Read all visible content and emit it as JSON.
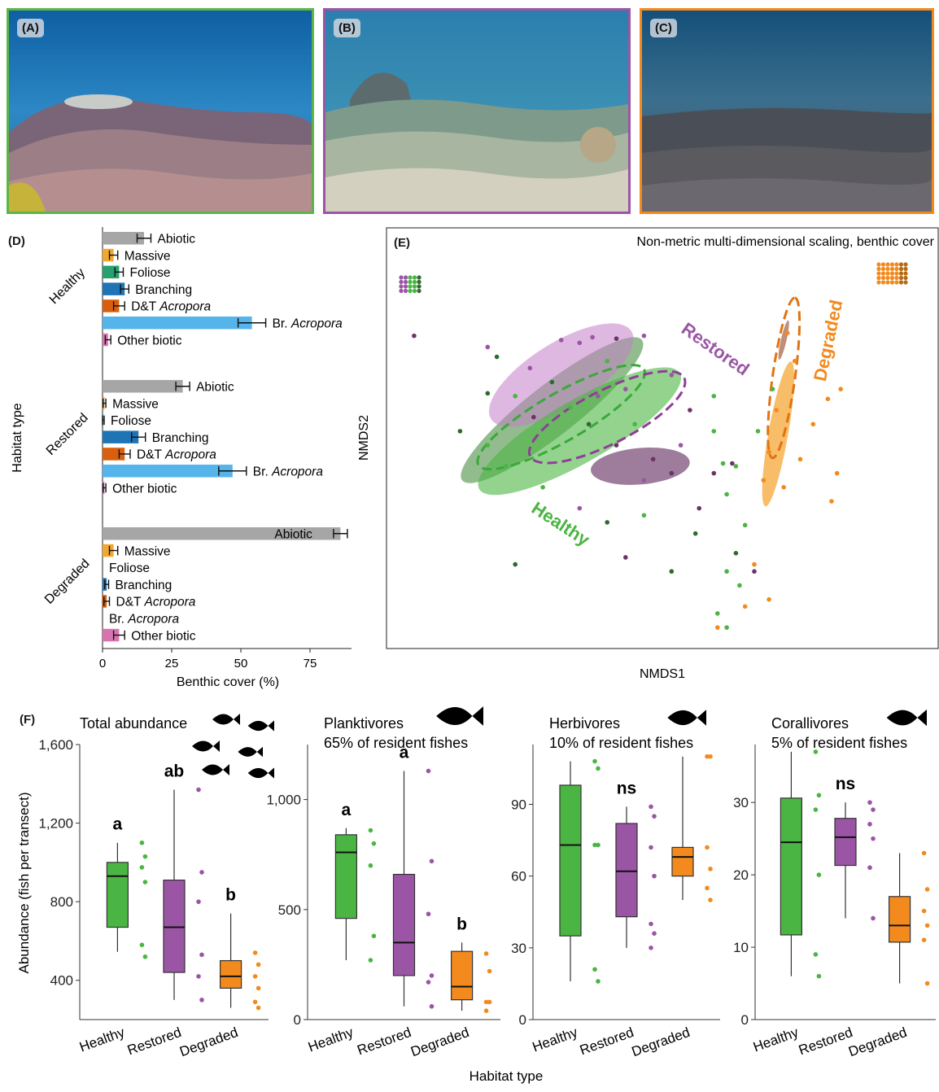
{
  "photos": [
    {
      "label": "(A)",
      "border": "#5cb547"
    },
    {
      "label": "(B)",
      "border": "#9b55a5"
    },
    {
      "label": "(C)",
      "border": "#f28a1e"
    }
  ],
  "colors": {
    "healthy": "#4bb543",
    "healthy_dark": "#2e6b2e",
    "restored": "#9b55a5",
    "restored_dark": "#6a3566",
    "degraded": "#f28a1e",
    "abiotic": "#a6a6a6",
    "massive": "#f0a830",
    "foliose": "#27a06e",
    "branching": "#1f74b5",
    "dt_acropora": "#d95f0e",
    "br_acropora": "#55b4ea",
    "other_biotic": "#d774b0"
  },
  "panel_labels": {
    "D": "(D)",
    "E": "(E)",
    "F": "(F)"
  },
  "chart_data": [
    {
      "id": "D",
      "type": "bar",
      "orientation": "horizontal",
      "ylabel": "Habitat type",
      "xlabel": "Benthic cover (%)",
      "xlim": [
        0,
        90
      ],
      "xticks": [
        "0",
        "25",
        "50",
        "75"
      ],
      "groups": [
        {
          "name": "Healthy",
          "bars": [
            {
              "label": "Abiotic",
              "italic": "",
              "value": 15,
              "err": 2.5,
              "color": "#a6a6a6"
            },
            {
              "label": "Massive",
              "italic": "",
              "value": 4,
              "err": 1.5,
              "color": "#f0a830"
            },
            {
              "label": "Foliose",
              "italic": "",
              "value": 6,
              "err": 1.5,
              "color": "#27a06e"
            },
            {
              "label": "Branching",
              "italic": "",
              "value": 8,
              "err": 1.5,
              "color": "#1f74b5"
            },
            {
              "label": "D&T ",
              "italic": "Acropora",
              "value": 6,
              "err": 2,
              "color": "#d95f0e"
            },
            {
              "label": "Br. ",
              "italic": "Acropora",
              "value": 54,
              "err": 5,
              "color": "#55b4ea"
            },
            {
              "label": "Other biotic",
              "italic": "",
              "value": 2,
              "err": 1,
              "color": "#d774b0"
            }
          ]
        },
        {
          "name": "Restored",
          "bars": [
            {
              "label": "Abiotic",
              "italic": "",
              "value": 29,
              "err": 2.5,
              "color": "#a6a6a6"
            },
            {
              "label": "Massive",
              "italic": "",
              "value": 0.7,
              "err": 0.5,
              "color": "#f0a830"
            },
            {
              "label": "Foliose",
              "italic": "",
              "value": 0.3,
              "err": 0.3,
              "color": "#27a06e"
            },
            {
              "label": "Branching",
              "italic": "",
              "value": 13,
              "err": 2.5,
              "color": "#1f74b5"
            },
            {
              "label": "D&T ",
              "italic": "Acropora",
              "value": 8,
              "err": 2,
              "color": "#d95f0e"
            },
            {
              "label": "Br. ",
              "italic": "Acropora",
              "value": 47,
              "err": 5,
              "color": "#55b4ea"
            },
            {
              "label": "Other biotic",
              "italic": "",
              "value": 0.7,
              "err": 0.5,
              "color": "#d774b0"
            }
          ]
        },
        {
          "name": "Degraded",
          "bars": [
            {
              "label": "Abiotic",
              "italic": "",
              "value": 86,
              "err": 2.5,
              "color": "#a6a6a6"
            },
            {
              "label": "Massive",
              "italic": "",
              "value": 4,
              "err": 1.5,
              "color": "#f0a830"
            },
            {
              "label": "Foliose",
              "italic": "",
              "value": 0,
              "err": 0,
              "color": "#27a06e"
            },
            {
              "label": "Branching",
              "italic": "",
              "value": 1.5,
              "err": 0.7,
              "color": "#1f74b5"
            },
            {
              "label": "D&T ",
              "italic": "Acropora",
              "value": 1.5,
              "err": 1,
              "color": "#d95f0e"
            },
            {
              "label": "Br. ",
              "italic": "Acropora",
              "value": 0,
              "err": 0,
              "color": "#55b4ea"
            },
            {
              "label": "Other biotic",
              "italic": "",
              "value": 6,
              "err": 2,
              "color": "#d774b0"
            }
          ]
        }
      ]
    },
    {
      "id": "E",
      "type": "scatter",
      "title": "Non-metric multi-dimensional scaling, benthic cover",
      "xlabel": "NMDS1",
      "ylabel": "NMDS2",
      "xlim": [
        -1.5,
        1.5
      ],
      "ylim": [
        -1.5,
        1.5
      ],
      "group_labels": [
        {
          "name": "Restored",
          "color": "#9b55a5"
        },
        {
          "name": "Healthy",
          "color": "#4bb543"
        },
        {
          "name": "Degraded",
          "color": "#f28a1e"
        }
      ],
      "ellipses": [
        {
          "cx": -0.6,
          "cy": 0.2,
          "rx": 0.62,
          "ry": 0.18,
          "angle": -38,
          "color": "#4a8f42",
          "opacity": 0.6,
          "dashed": false
        },
        {
          "cx": -0.55,
          "cy": 0.45,
          "rx": 0.45,
          "ry": 0.23,
          "angle": -32,
          "color": "#c27dc6",
          "opacity": 0.55,
          "dashed": false
        },
        {
          "cx": -0.45,
          "cy": 0.05,
          "rx": 0.63,
          "ry": 0.22,
          "angle": -30,
          "color": "#4bb543",
          "opacity": 0.6,
          "dashed": false
        },
        {
          "cx": -0.12,
          "cy": -0.2,
          "rx": 0.27,
          "ry": 0.13,
          "angle": -5,
          "color": "#6a3566",
          "opacity": 0.65,
          "dashed": false
        },
        {
          "cx": 0.63,
          "cy": 0.03,
          "rx": 0.4,
          "ry": 0.07,
          "angle": -80,
          "color": "#f7b14d",
          "opacity": 0.85,
          "dashed": false
        },
        {
          "cx": 0.66,
          "cy": 0.7,
          "rx": 0.11,
          "ry": 0.02,
          "angle": -77,
          "color": "#b9826a",
          "opacity": 0.9,
          "dashed": false
        },
        {
          "cx": -0.55,
          "cy": 0.15,
          "rx": 0.52,
          "ry": 0.17,
          "angle": -30,
          "color": "#3aa83a",
          "opacity": 1,
          "dashed": true
        },
        {
          "cx": -0.3,
          "cy": 0.15,
          "rx": 0.47,
          "ry": 0.19,
          "angle": -27,
          "color": "#8e3f96",
          "opacity": 1,
          "dashed": true
        },
        {
          "cx": 0.66,
          "cy": 0.43,
          "rx": 0.44,
          "ry": 0.08,
          "angle": -82,
          "color": "#e27310",
          "opacity": 1,
          "dashed": true
        }
      ],
      "points": [
        {
          "x": -1.35,
          "y": 0.73,
          "g": "restored_dark"
        },
        {
          "x": -0.95,
          "y": 0.65,
          "g": "restored"
        },
        {
          "x": -0.9,
          "y": 0.58,
          "g": "healthy_dark"
        },
        {
          "x": -0.72,
          "y": 0.5,
          "g": "restored"
        },
        {
          "x": -0.55,
          "y": 0.7,
          "g": "restored"
        },
        {
          "x": -0.45,
          "y": 0.68,
          "g": "restored"
        },
        {
          "x": -0.38,
          "y": 0.72,
          "g": "restored"
        },
        {
          "x": -0.25,
          "y": 0.71,
          "g": "restored_dark"
        },
        {
          "x": -0.1,
          "y": 0.73,
          "g": "restored"
        },
        {
          "x": -0.3,
          "y": 0.55,
          "g": "healthy"
        },
        {
          "x": -0.6,
          "y": 0.4,
          "g": "healthy_dark"
        },
        {
          "x": -0.8,
          "y": 0.3,
          "g": "healthy"
        },
        {
          "x": -0.95,
          "y": 0.32,
          "g": "healthy_dark"
        },
        {
          "x": -0.7,
          "y": 0.15,
          "g": "restored_dark"
        },
        {
          "x": -0.5,
          "y": 0.22,
          "g": "healthy"
        },
        {
          "x": -0.4,
          "y": 0.1,
          "g": "healthy_dark"
        },
        {
          "x": -0.35,
          "y": 0.3,
          "g": "restored"
        },
        {
          "x": -0.15,
          "y": 0.1,
          "g": "healthy"
        },
        {
          "x": -0.25,
          "y": -0.05,
          "g": "restored_dark"
        },
        {
          "x": -0.05,
          "y": -0.15,
          "g": "restored_dark"
        },
        {
          "x": -0.1,
          "y": -0.3,
          "g": "restored"
        },
        {
          "x": 0.05,
          "y": -0.25,
          "g": "restored_dark"
        },
        {
          "x": 0.1,
          "y": -0.05,
          "g": "restored"
        },
        {
          "x": 0.15,
          "y": 0.2,
          "g": "restored_dark"
        },
        {
          "x": 0.28,
          "y": 0.05,
          "g": "healthy"
        },
        {
          "x": 0.05,
          "y": 0.45,
          "g": "restored"
        },
        {
          "x": -0.2,
          "y": 0.35,
          "g": "restored"
        },
        {
          "x": -1.1,
          "y": 0.05,
          "g": "healthy_dark"
        },
        {
          "x": -0.85,
          "y": -0.2,
          "g": "healthy"
        },
        {
          "x": -0.65,
          "y": -0.35,
          "g": "healthy"
        },
        {
          "x": -0.95,
          "y": -0.05,
          "g": "healthy"
        },
        {
          "x": -0.45,
          "y": -0.5,
          "g": "restored"
        },
        {
          "x": -0.3,
          "y": -0.6,
          "g": "healthy_dark"
        },
        {
          "x": -0.1,
          "y": -0.55,
          "g": "healthy"
        },
        {
          "x": 0.2,
          "y": -0.5,
          "g": "restored_dark"
        },
        {
          "x": 0.35,
          "y": -0.4,
          "g": "healthy"
        },
        {
          "x": 0.33,
          "y": -0.18,
          "g": "healthy"
        },
        {
          "x": 0.28,
          "y": -0.25,
          "g": "restored_dark"
        },
        {
          "x": 0.45,
          "y": -0.62,
          "g": "healthy"
        },
        {
          "x": -0.2,
          "y": -0.85,
          "g": "restored_dark"
        },
        {
          "x": -0.8,
          "y": -0.9,
          "g": "healthy_dark"
        },
        {
          "x": 0.35,
          "y": -0.95,
          "g": "healthy"
        },
        {
          "x": 0.05,
          "y": -0.95,
          "g": "healthy_dark"
        },
        {
          "x": 0.4,
          "y": -0.82,
          "g": "healthy_dark"
        },
        {
          "x": 0.5,
          "y": -0.95,
          "g": "restored_dark"
        },
        {
          "x": 0.38,
          "y": -0.18,
          "g": "restored_dark"
        },
        {
          "x": 0.28,
          "y": 0.3,
          "g": "healthy"
        },
        {
          "x": 0.18,
          "y": -0.68,
          "g": "healthy_dark"
        },
        {
          "x": 0.6,
          "y": 0.35,
          "g": "healthy"
        },
        {
          "x": 0.72,
          "y": 0.55,
          "g": "degraded"
        },
        {
          "x": 0.68,
          "y": 0.75,
          "g": "degraded"
        },
        {
          "x": 0.62,
          "y": 0.2,
          "g": "degraded"
        },
        {
          "x": 0.58,
          "y": -0.1,
          "g": "degraded"
        },
        {
          "x": 0.55,
          "y": -0.3,
          "g": "degraded"
        },
        {
          "x": 0.66,
          "y": -0.35,
          "g": "degraded"
        },
        {
          "x": 0.75,
          "y": -0.15,
          "g": "degraded"
        },
        {
          "x": 0.82,
          "y": 0.1,
          "g": "degraded"
        },
        {
          "x": 0.9,
          "y": 0.28,
          "g": "degraded"
        },
        {
          "x": 0.95,
          "y": -0.25,
          "g": "degraded"
        },
        {
          "x": 0.92,
          "y": -0.45,
          "g": "degraded"
        },
        {
          "x": 0.5,
          "y": -0.9,
          "g": "degraded"
        },
        {
          "x": 0.45,
          "y": -1.2,
          "g": "degraded"
        },
        {
          "x": 0.58,
          "y": -1.15,
          "g": "degraded"
        },
        {
          "x": 0.3,
          "y": -1.35,
          "g": "degraded"
        },
        {
          "x": 0.97,
          "y": 0.35,
          "g": "degraded"
        },
        {
          "x": 0.42,
          "y": -1.05,
          "g": "healthy"
        },
        {
          "x": 0.3,
          "y": -1.25,
          "g": "healthy"
        },
        {
          "x": 0.35,
          "y": -1.35,
          "g": "healthy"
        },
        {
          "x": 0.4,
          "y": -0.2,
          "g": "healthy"
        },
        {
          "x": 0.52,
          "y": 0.05,
          "g": "healthy"
        }
      ]
    },
    {
      "id": "F1",
      "type": "box",
      "title": "Total abundance",
      "subtitle": "",
      "ylabel": "Abundance (fish per transect)",
      "xlabel": "Habitat type",
      "ylim": [
        200,
        1600
      ],
      "yticks": [
        "400",
        "800",
        "1,200",
        "1,600"
      ],
      "categories": [
        "Healthy",
        "Restored",
        "Degraded"
      ],
      "boxes": [
        {
          "min": 545,
          "q1": 670,
          "median": 930,
          "q3": 1000,
          "max": 1100,
          "letter": "a",
          "points": [
            1100,
            1030,
            975,
            900,
            580,
            520
          ]
        },
        {
          "min": 300,
          "q1": 440,
          "median": 670,
          "q3": 910,
          "max": 1370,
          "letter": "ab",
          "points": [
            1370,
            950,
            800,
            530,
            420,
            300
          ]
        },
        {
          "min": 260,
          "q1": 360,
          "median": 420,
          "q3": 500,
          "max": 740,
          "letter": "b",
          "points": [
            540,
            480,
            420,
            360,
            290,
            260
          ]
        }
      ]
    },
    {
      "id": "F2",
      "type": "box",
      "title": "Planktivores",
      "subtitle": "65% of resident fishes",
      "ylim": [
        0,
        1250
      ],
      "yticks": [
        "0",
        "500",
        "1,000"
      ],
      "categories": [
        "Healthy",
        "Restored",
        "Degraded"
      ],
      "boxes": [
        {
          "min": 270,
          "q1": 460,
          "median": 760,
          "q3": 840,
          "max": 870,
          "letter": "a",
          "points": [
            860,
            800,
            700,
            380,
            270
          ]
        },
        {
          "min": 60,
          "q1": 200,
          "median": 350,
          "q3": 660,
          "max": 1130,
          "letter": "a",
          "points": [
            1130,
            720,
            480,
            200,
            170,
            60
          ]
        },
        {
          "min": 40,
          "q1": 90,
          "median": 150,
          "q3": 310,
          "max": 350,
          "letter": "b",
          "points": [
            300,
            220,
            80,
            80,
            40
          ]
        }
      ]
    },
    {
      "id": "F3",
      "type": "box",
      "title": "Herbivores",
      "subtitle": "10% of resident fishes",
      "ylim": [
        0,
        115
      ],
      "yticks": [
        "0",
        "30",
        "60",
        "90"
      ],
      "categories": [
        "Healthy",
        "Restored",
        "Degraded"
      ],
      "boxes": [
        {
          "min": 16,
          "q1": 35,
          "median": 73,
          "q3": 98,
          "max": 108,
          "letter": "",
          "points": [
            108,
            105,
            73,
            73,
            21,
            16
          ]
        },
        {
          "min": 30,
          "q1": 43,
          "median": 62,
          "q3": 82,
          "max": 89,
          "letter": "ns",
          "points": [
            89,
            85,
            72,
            60,
            40,
            36,
            30
          ]
        },
        {
          "min": 50,
          "q1": 60,
          "median": 68,
          "q3": 72,
          "max": 110,
          "letter": "",
          "points": [
            110,
            110,
            72,
            63,
            55,
            50
          ]
        }
      ]
    },
    {
      "id": "F4",
      "type": "box",
      "title": "Corallivores",
      "subtitle": "5% of resident fishes",
      "ylim": [
        0,
        38
      ],
      "yticks": [
        "0",
        "10",
        "20",
        "30"
      ],
      "categories": [
        "Healthy",
        "Restored",
        "Degraded"
      ],
      "boxes": [
        {
          "min": 6,
          "q1": 11.7,
          "median": 24.5,
          "q3": 30.6,
          "max": 37,
          "letter": "",
          "points": [
            37,
            31,
            29,
            20,
            9,
            6
          ]
        },
        {
          "min": 14,
          "q1": 21.3,
          "median": 25.2,
          "q3": 27.8,
          "max": 30,
          "letter": "ns",
          "points": [
            30,
            29,
            27,
            25,
            21,
            14
          ]
        },
        {
          "min": 5,
          "q1": 10.7,
          "median": 13,
          "q3": 17,
          "max": 23,
          "letter": "",
          "points": [
            23,
            18,
            15,
            13,
            11,
            5
          ]
        }
      ]
    }
  ]
}
